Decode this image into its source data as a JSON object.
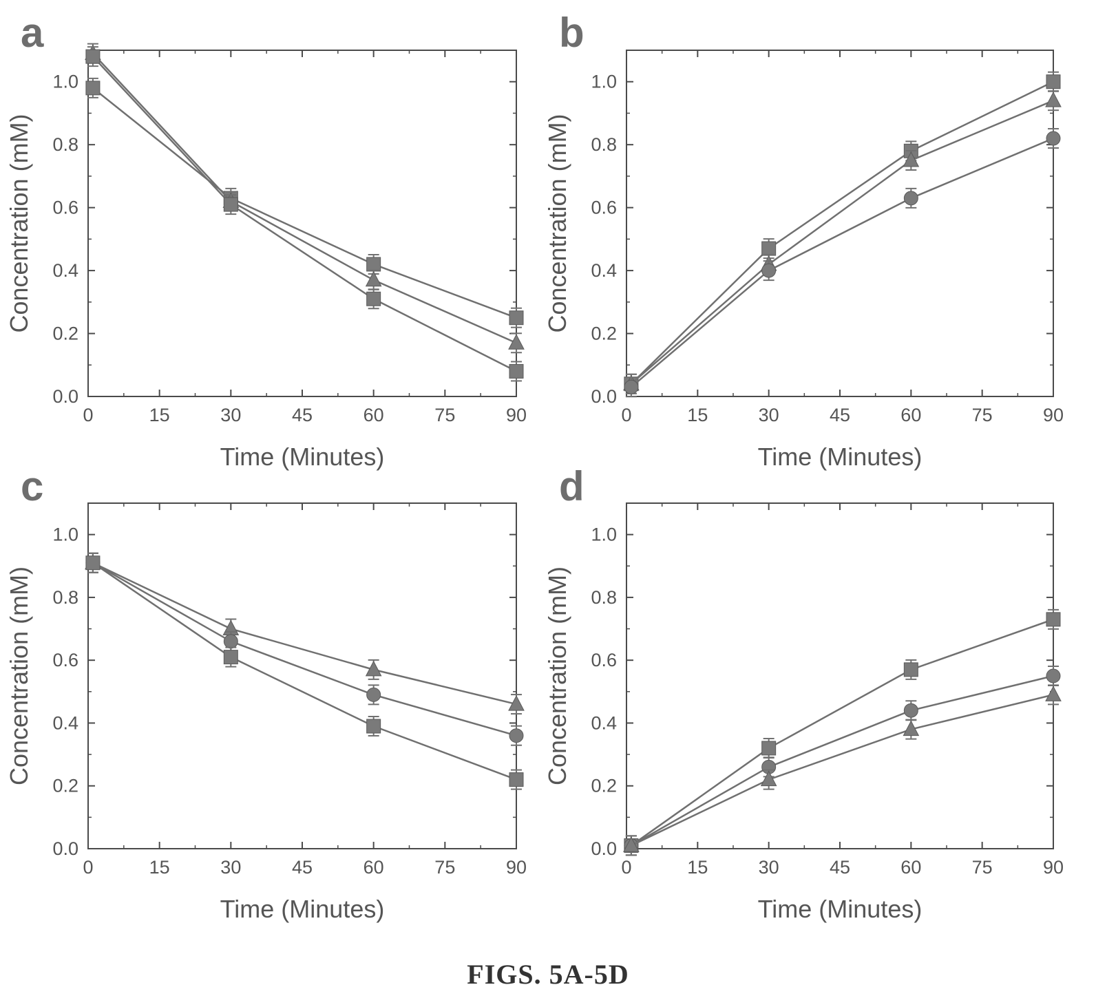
{
  "caption": "FIGS. 5A-5D",
  "colors": {
    "axis": "#4a4a4a",
    "series": "#707070",
    "marker": "#7a7a7a"
  },
  "chart_data": [
    {
      "type": "line",
      "panel_label": "a",
      "xlabel": "Time (Minutes)",
      "ylabel": "Concentration (mM)",
      "xlim": [
        0,
        90
      ],
      "ylim": [
        0.0,
        1.1
      ],
      "xticks": [
        0,
        15,
        30,
        45,
        60,
        75,
        90
      ],
      "yticks": [
        "0.0",
        "0.2",
        "0.4",
        "0.6",
        "0.8",
        "1.0"
      ],
      "x": [
        1,
        30,
        60,
        90
      ],
      "series": [
        {
          "marker": "square",
          "values": [
            0.98,
            0.63,
            0.42,
            0.25
          ]
        },
        {
          "marker": "triangle",
          "values": [
            1.09,
            0.62,
            0.37,
            0.17
          ]
        },
        {
          "marker": "square",
          "values": [
            1.08,
            0.61,
            0.31,
            0.08
          ]
        }
      ]
    },
    {
      "type": "line",
      "panel_label": "b",
      "xlabel": "Time (Minutes)",
      "ylabel": "Concentration (mM)",
      "xlim": [
        0,
        90
      ],
      "ylim": [
        0.0,
        1.1
      ],
      "xticks": [
        0,
        15,
        30,
        45,
        60,
        75,
        90
      ],
      "yticks": [
        "0.0",
        "0.2",
        "0.4",
        "0.6",
        "0.8",
        "1.0"
      ],
      "x": [
        1,
        30,
        60,
        90
      ],
      "series": [
        {
          "marker": "square",
          "values": [
            0.04,
            0.47,
            0.78,
            1.0
          ]
        },
        {
          "marker": "triangle",
          "values": [
            0.04,
            0.42,
            0.75,
            0.94
          ]
        },
        {
          "marker": "circle",
          "values": [
            0.03,
            0.4,
            0.63,
            0.82
          ]
        }
      ]
    },
    {
      "type": "line",
      "panel_label": "c",
      "xlabel": "Time (Minutes)",
      "ylabel": "Concentration (mM)",
      "xlim": [
        0,
        90
      ],
      "ylim": [
        0.0,
        1.1
      ],
      "xticks": [
        0,
        15,
        30,
        45,
        60,
        75,
        90
      ],
      "yticks": [
        "0.0",
        "0.2",
        "0.4",
        "0.6",
        "0.8",
        "1.0"
      ],
      "x": [
        1,
        30,
        60,
        90
      ],
      "series": [
        {
          "marker": "triangle",
          "values": [
            0.91,
            0.7,
            0.57,
            0.46
          ]
        },
        {
          "marker": "circle",
          "values": [
            0.91,
            0.66,
            0.49,
            0.36
          ]
        },
        {
          "marker": "square",
          "values": [
            0.91,
            0.61,
            0.39,
            0.22
          ]
        }
      ]
    },
    {
      "type": "line",
      "panel_label": "d",
      "xlabel": "Time (Minutes)",
      "ylabel": "Concentration (mM)",
      "xlim": [
        0,
        90
      ],
      "ylim": [
        0.0,
        1.1
      ],
      "xticks": [
        0,
        15,
        30,
        45,
        60,
        75,
        90
      ],
      "yticks": [
        "0.0",
        "0.2",
        "0.4",
        "0.6",
        "0.8",
        "1.0"
      ],
      "x": [
        1,
        30,
        60,
        90
      ],
      "series": [
        {
          "marker": "square",
          "values": [
            0.01,
            0.32,
            0.57,
            0.73
          ]
        },
        {
          "marker": "circle",
          "values": [
            0.01,
            0.26,
            0.44,
            0.55
          ]
        },
        {
          "marker": "triangle",
          "values": [
            0.01,
            0.22,
            0.38,
            0.49
          ]
        }
      ]
    }
  ]
}
